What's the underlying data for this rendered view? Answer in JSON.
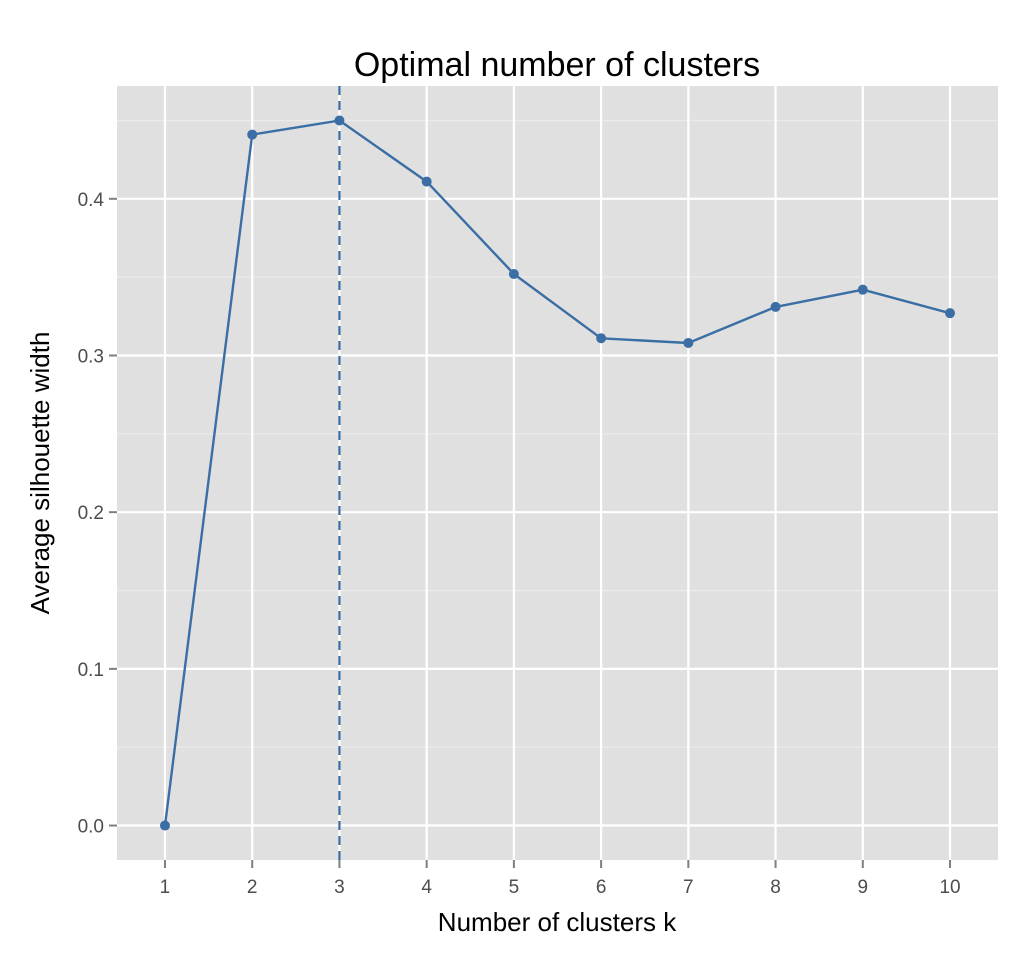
{
  "chart_data": {
    "type": "line",
    "title": "Optimal number of clusters",
    "xlabel": "Number of clusters k",
    "ylabel": "Average silhouette width",
    "x": [
      1,
      2,
      3,
      4,
      5,
      6,
      7,
      8,
      9,
      10
    ],
    "x_tick_labels": [
      "1",
      "2",
      "3",
      "4",
      "5",
      "6",
      "7",
      "8",
      "9",
      "10"
    ],
    "y_ticks": [
      0.0,
      0.1,
      0.2,
      0.3,
      0.4
    ],
    "y_tick_labels": [
      "0.0",
      "0.1",
      "0.2",
      "0.3",
      "0.4"
    ],
    "ylim": [
      -0.022,
      0.472
    ],
    "xlim": [
      0.45,
      10.55
    ],
    "series": [
      {
        "values": [
          0.0,
          0.441,
          0.45,
          0.411,
          0.352,
          0.311,
          0.308,
          0.331,
          0.342,
          0.327
        ]
      }
    ],
    "vline": {
      "x": 3,
      "style": "dashed"
    },
    "grid": true,
    "colors": {
      "panel_background": "#e0e0e0",
      "grid_major": "#ffffff",
      "grid_minor": "#ebebeb",
      "line": "#3a6ea5",
      "tick_text": "#4d4d4d"
    }
  }
}
